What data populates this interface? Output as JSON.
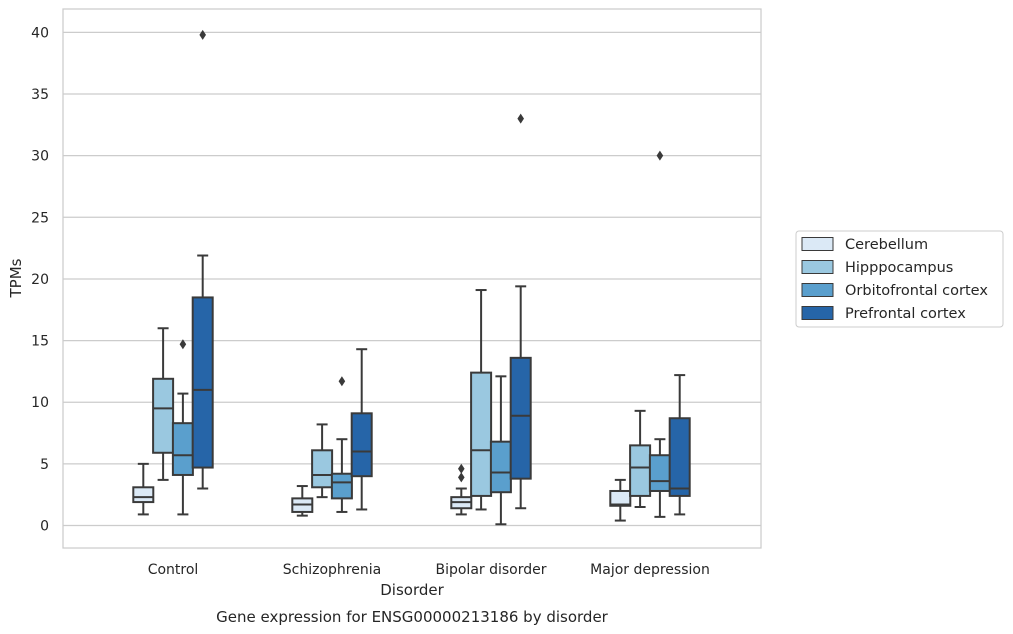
{
  "chart_data": {
    "type": "box",
    "title": "Gene expression for ENSG00000213186 by disorder",
    "xlabel": "Disorder",
    "ylabel": "TPMs",
    "ylim": [
      -1.8,
      42
    ],
    "yticks": [
      0,
      5,
      10,
      15,
      20,
      25,
      30,
      35,
      40
    ],
    "grid": true,
    "legend_position": "right",
    "categories": [
      "Control",
      "Schizophrenia",
      "Bipolar disorder",
      "Major depression"
    ],
    "series": [
      {
        "name": "Cerebellum",
        "color": "#dbe9f6",
        "boxes": [
          {
            "whislo": 0.9,
            "q1": 1.9,
            "med": 2.3,
            "q3": 3.1,
            "whishi": 5.0,
            "fliers": []
          },
          {
            "whislo": 0.8,
            "q1": 1.1,
            "med": 1.7,
            "q3": 2.2,
            "whishi": 3.2,
            "fliers": []
          },
          {
            "whislo": 0.9,
            "q1": 1.4,
            "med": 1.9,
            "q3": 2.3,
            "whishi": 3.0,
            "fliers": [
              3.9,
              4.6
            ]
          },
          {
            "whislo": 0.4,
            "q1": 1.6,
            "med": 1.7,
            "q3": 2.8,
            "whishi": 3.7,
            "fliers": []
          }
        ]
      },
      {
        "name": "Hipppocampus",
        "color": "#9ac8e0",
        "boxes": [
          {
            "whislo": 3.7,
            "q1": 5.9,
            "med": 9.5,
            "q3": 11.9,
            "whishi": 16.0,
            "fliers": []
          },
          {
            "whislo": 2.3,
            "q1": 3.1,
            "med": 4.1,
            "q3": 6.1,
            "whishi": 8.2,
            "fliers": []
          },
          {
            "whislo": 1.3,
            "q1": 2.4,
            "med": 6.1,
            "q3": 12.4,
            "whishi": 19.1,
            "fliers": []
          },
          {
            "whislo": 1.5,
            "q1": 2.4,
            "med": 4.7,
            "q3": 6.5,
            "whishi": 9.3,
            "fliers": []
          }
        ]
      },
      {
        "name": "Orbitofrontal cortex",
        "color": "#5a9fcd",
        "boxes": [
          {
            "whislo": 0.9,
            "q1": 4.1,
            "med": 5.7,
            "q3": 8.3,
            "whishi": 10.7,
            "fliers": [
              14.7
            ]
          },
          {
            "whislo": 1.1,
            "q1": 2.2,
            "med": 3.5,
            "q3": 4.2,
            "whishi": 7.0,
            "fliers": [
              11.7
            ]
          },
          {
            "whislo": 0.1,
            "q1": 2.7,
            "med": 4.3,
            "q3": 6.8,
            "whishi": 12.1,
            "fliers": []
          },
          {
            "whislo": 0.7,
            "q1": 2.8,
            "med": 3.6,
            "q3": 5.7,
            "whishi": 7.0,
            "fliers": [
              30.0
            ]
          }
        ]
      },
      {
        "name": "Prefrontal cortex",
        "color": "#2665a8",
        "boxes": [
          {
            "whislo": 3.0,
            "q1": 4.7,
            "med": 11.0,
            "q3": 18.5,
            "whishi": 21.9,
            "fliers": [
              39.8
            ]
          },
          {
            "whislo": 1.3,
            "q1": 4.0,
            "med": 6.0,
            "q3": 9.1,
            "whishi": 14.3,
            "fliers": []
          },
          {
            "whislo": 1.4,
            "q1": 3.8,
            "med": 8.9,
            "q3": 13.6,
            "whishi": 19.4,
            "fliers": [
              33.0
            ]
          },
          {
            "whislo": 0.9,
            "q1": 2.4,
            "med": 3.0,
            "q3": 8.7,
            "whishi": 12.2,
            "fliers": []
          }
        ]
      }
    ]
  }
}
